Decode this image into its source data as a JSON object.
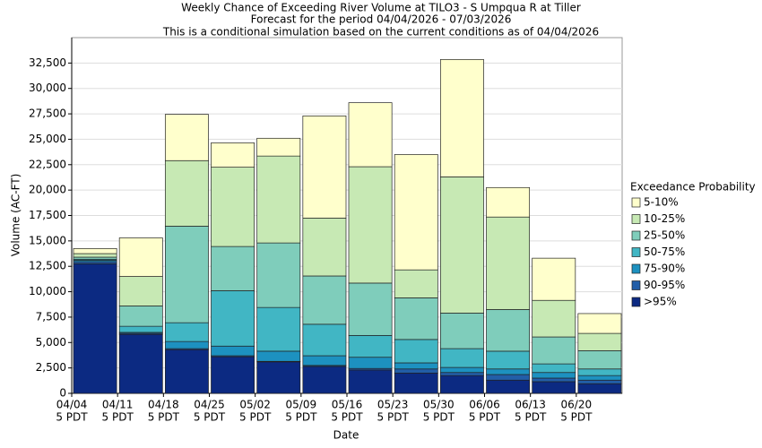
{
  "chart_data": {
    "type": "stacked_bar",
    "title": "Weekly Chance of Exceeding River Volume at TILO3 - S Umpqua R at Tiller",
    "subtitle": "Forecast for the period 04/04/2026 - 07/03/2026",
    "subtitle2": "This is a conditional simulation based on the current conditions as of 04/04/2026",
    "x_label": "Date",
    "y_label": "Volume (AC-FT)",
    "categories": [
      "04/04",
      "04/11",
      "04/18",
      "04/25",
      "05/02",
      "05/09",
      "05/16",
      "05/23",
      "05/30",
      "06/06",
      "06/13",
      "06/20"
    ],
    "category_suffix": "5 PDT",
    "legend_title": "Exceedance Probability",
    "series": [
      {
        "name": ">95%",
        "color": "#0c2a82",
        "values": [
          12750,
          5800,
          4300,
          3600,
          3100,
          2650,
          2300,
          2000,
          1750,
          1300,
          1150,
          950
        ]
      },
      {
        "name": "90-95%",
        "color": "#225ea8",
        "values": [
          200,
          100,
          100,
          100,
          50,
          100,
          150,
          400,
          300,
          550,
          350,
          350
        ]
      },
      {
        "name": "75-90%",
        "color": "#1d91c0",
        "values": [
          150,
          100,
          700,
          950,
          1000,
          950,
          1100,
          600,
          500,
          550,
          550,
          450
        ]
      },
      {
        "name": "50-75%",
        "color": "#41b6c4",
        "values": [
          100,
          600,
          1850,
          5450,
          4300,
          3100,
          2150,
          2300,
          1850,
          1750,
          850,
          650
        ]
      },
      {
        "name": "25-50%",
        "color": "#7fcdbb",
        "values": [
          200,
          2000,
          9500,
          4350,
          6350,
          4750,
          5150,
          4100,
          3500,
          4100,
          2650,
          1800
        ]
      },
      {
        "name": "10-25%",
        "color": "#c7e9b4",
        "values": [
          350,
          2900,
          6450,
          7800,
          8550,
          5700,
          11450,
          2750,
          13400,
          9100,
          3600,
          1700
        ]
      },
      {
        "name": "5-10%",
        "color": "#ffffcc",
        "values": [
          500,
          3800,
          4550,
          2400,
          1750,
          10050,
          6300,
          11350,
          11550,
          2900,
          4150,
          1950
        ]
      }
    ],
    "ylim": [
      0,
      35000
    ],
    "yticks": [
      0,
      {
        "value": 2500,
        "label": "2,500"
      },
      {
        "value": 5000,
        "label": "5,000"
      },
      {
        "value": 7500,
        "label": "7,500"
      },
      {
        "value": 10000,
        "label": "10,000"
      },
      {
        "value": 12500,
        "label": "12,500"
      },
      {
        "value": 15000,
        "label": "15,000"
      },
      {
        "value": 17500,
        "label": "17,500"
      },
      {
        "value": 20000,
        "label": "20,000"
      },
      {
        "value": 22500,
        "label": "22,500"
      },
      {
        "value": 25000,
        "label": "25,000"
      },
      {
        "value": 27500,
        "label": "27,500"
      },
      {
        "value": 30000,
        "label": "30,000"
      },
      {
        "value": 32500,
        "label": "32,500"
      }
    ],
    "grid": true
  }
}
